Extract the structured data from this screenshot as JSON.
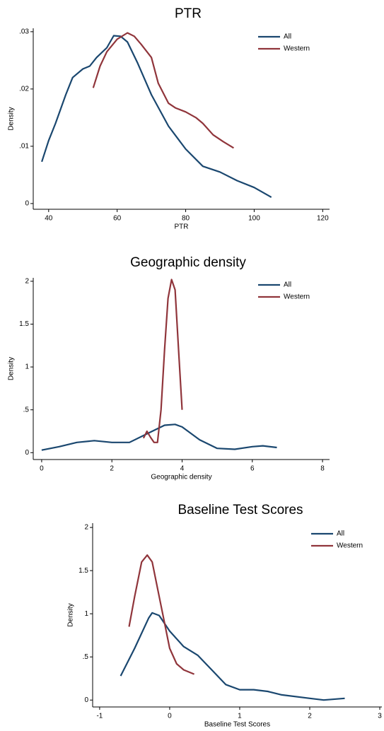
{
  "chart_data": [
    {
      "type": "line",
      "title": "PTR",
      "xlabel": "PTR",
      "ylabel": "Density",
      "xlim": [
        35.5,
        122
      ],
      "ylim": [
        -0.001,
        0.0306
      ],
      "xticks": [
        40,
        60,
        80,
        100,
        120
      ],
      "yticks": [
        0,
        {
          "value": 0.01,
          "label": ".01"
        },
        {
          "value": 0.02,
          "label": ".02"
        },
        {
          "value": 0.03,
          "label": ".03"
        }
      ],
      "legend": "upper right",
      "series": [
        {
          "name": "All",
          "color": "#1a476f",
          "x": [
            38,
            40,
            42,
            45,
            47,
            50,
            52,
            54,
            57,
            59,
            61,
            63,
            66,
            70,
            75,
            80,
            85,
            90,
            95,
            100,
            105
          ],
          "values": [
            0.0073,
            0.011,
            0.014,
            0.019,
            0.022,
            0.0235,
            0.024,
            0.0255,
            0.0272,
            0.0293,
            0.0292,
            0.0282,
            0.0245,
            0.019,
            0.0135,
            0.0095,
            0.0065,
            0.0055,
            0.004,
            0.0028,
            0.0011
          ]
        },
        {
          "name": "Western",
          "color": "#90353b",
          "x": [
            53,
            55,
            57,
            60,
            63,
            65,
            67,
            70,
            72,
            75,
            77,
            80,
            83,
            85,
            88,
            91,
            94
          ],
          "values": [
            0.0202,
            0.024,
            0.0265,
            0.0287,
            0.0298,
            0.0292,
            0.0278,
            0.0255,
            0.021,
            0.0175,
            0.0167,
            0.016,
            0.015,
            0.014,
            0.012,
            0.0108,
            0.0097
          ]
        }
      ]
    },
    {
      "type": "line",
      "title": "Geographic density",
      "xlabel": "Geographic density",
      "ylabel": "Density",
      "xlim": [
        -0.24,
        8.2
      ],
      "ylim": [
        -0.08,
        2.04
      ],
      "xticks": [
        0,
        2,
        4,
        6,
        8
      ],
      "yticks": [
        0,
        {
          "value": 0.5,
          "label": ".5"
        },
        1,
        1.5,
        2
      ],
      "legend": "upper right",
      "series": [
        {
          "name": "All",
          "color": "#1a476f",
          "x": [
            0,
            0.5,
            1,
            1.5,
            2,
            2.5,
            3,
            3.5,
            3.8,
            4,
            4.5,
            5,
            5.5,
            6,
            6.3,
            6.7
          ],
          "values": [
            0.03,
            0.07,
            0.12,
            0.14,
            0.12,
            0.12,
            0.22,
            0.32,
            0.33,
            0.3,
            0.15,
            0.05,
            0.04,
            0.07,
            0.08,
            0.06
          ]
        },
        {
          "name": "Western",
          "color": "#90353b",
          "x": [
            2.9,
            3.0,
            3.1,
            3.2,
            3.3,
            3.4,
            3.5,
            3.6,
            3.7,
            3.8,
            3.9,
            4.0
          ],
          "values": [
            0.17,
            0.25,
            0.18,
            0.12,
            0.12,
            0.5,
            1.2,
            1.8,
            2.02,
            1.9,
            1.2,
            0.5
          ]
        }
      ]
    },
    {
      "type": "line",
      "title": "Baseline Test Scores",
      "xlabel": "Baseline Test Scores",
      "ylabel": "Density",
      "xlim": [
        -1.1,
        3.03
      ],
      "ylim": [
        -0.08,
        2.05
      ],
      "xticks": [
        -1,
        0,
        1,
        2,
        3
      ],
      "yticks": [
        0,
        {
          "value": 0.5,
          "label": ".5"
        },
        1,
        1.5,
        2
      ],
      "legend": "upper right",
      "series": [
        {
          "name": "All",
          "color": "#1a476f",
          "x": [
            -0.7,
            -0.5,
            -0.3,
            -0.25,
            -0.15,
            0,
            0.2,
            0.4,
            0.6,
            0.8,
            1.0,
            1.2,
            1.4,
            1.6,
            2.0,
            2.2,
            2.5
          ],
          "values": [
            0.28,
            0.6,
            0.95,
            1.01,
            0.98,
            0.8,
            0.62,
            0.52,
            0.35,
            0.18,
            0.12,
            0.12,
            0.1,
            0.06,
            0.02,
            0.0,
            0.02
          ]
        },
        {
          "name": "Western",
          "color": "#90353b",
          "x": [
            -0.58,
            -0.5,
            -0.4,
            -0.32,
            -0.25,
            -0.15,
            -0.05,
            0,
            0.1,
            0.2,
            0.35
          ],
          "values": [
            0.85,
            1.2,
            1.6,
            1.68,
            1.6,
            1.2,
            0.8,
            0.6,
            0.42,
            0.35,
            0.3
          ]
        }
      ]
    }
  ]
}
